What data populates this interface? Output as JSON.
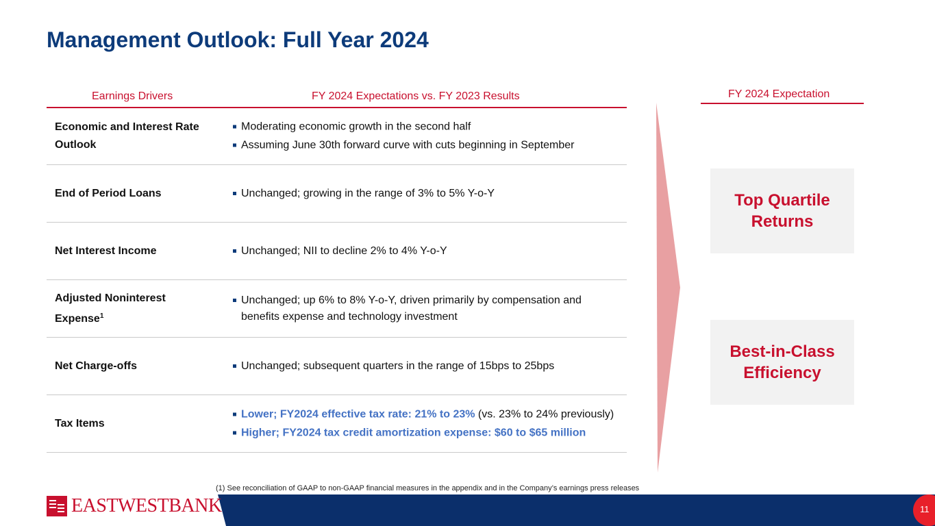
{
  "title": "Management Outlook: Full Year 2024",
  "headers": {
    "drivers": "Earnings Drivers",
    "expectations": "FY 2024 Expectations vs. FY 2023 Results",
    "outlook": "FY 2024 Expectation"
  },
  "rows": [
    {
      "driver": "Economic and Interest Rate Outlook",
      "bullets": [
        "Moderating economic growth in the second half",
        "Assuming June 30th forward curve with cuts beginning in September"
      ]
    },
    {
      "driver": "End of Period Loans",
      "bullets": [
        "Unchanged; growing in the range of 3% to 5% Y-o-Y"
      ]
    },
    {
      "driver": "Net Interest Income",
      "bullets": [
        "Unchanged; NII to decline 2% to 4% Y-o-Y"
      ]
    },
    {
      "driver": "Adjusted Noninterest Expense",
      "sup": "1",
      "bullets": [
        "Unchanged; up 6% to 8% Y-o-Y, driven primarily by compensation and benefits expense and technology investment"
      ]
    },
    {
      "driver": "Net Charge-offs",
      "bullets": [
        "Unchanged; subsequent quarters in the range of 15bps to 25bps"
      ]
    },
    {
      "driver": "Tax Items",
      "bullets": [
        {
          "bold": "Lower; FY2024 effective tax rate: 21% to 23%",
          "rest": " (vs. 23% to 24% previously)"
        },
        {
          "bold": "Higher; FY2024 tax credit amortization expense: $60 to $65 million",
          "rest": ""
        }
      ]
    }
  ],
  "boxes": [
    "Top Quartile Returns",
    "Best-in-Class Efficiency"
  ],
  "footnote": "(1)   See reconciliation of GAAP to non-GAAP financial measures in the appendix and in the Company’s earnings press releases",
  "logo": "EASTWESTBANK",
  "page": "11",
  "colors": {
    "navy": "#0d3b7a",
    "red": "#c8102e",
    "bar": "#0b2f6b"
  }
}
